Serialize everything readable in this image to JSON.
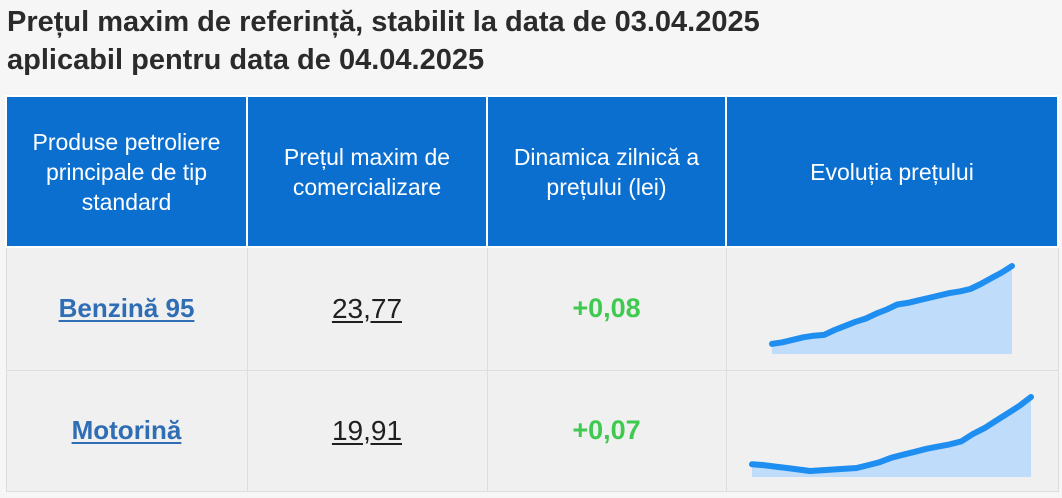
{
  "title": {
    "line1": "Prețul maxim de referință, stabilit la data de 03.04.2025",
    "line2": "aplicabil pentru data de 04.04.2025"
  },
  "table": {
    "headers": [
      "Produse petroliere principale de tip standard",
      "Prețul maxim de comercializare",
      "Dinamica zilnică a prețului (lei)",
      "Evoluția prețului"
    ],
    "rows": [
      {
        "product": "Benzină 95",
        "price": "23,77",
        "change": "+0,08",
        "trend": [
          0.05,
          0.07,
          0.1,
          0.13,
          0.15,
          0.16,
          0.22,
          0.27,
          0.32,
          0.36,
          0.42,
          0.47,
          0.53,
          0.55,
          0.58,
          0.61,
          0.64,
          0.67,
          0.69,
          0.72,
          0.78,
          0.85,
          0.92,
          1.0
        ]
      },
      {
        "product": "Motorină",
        "price": "19,91",
        "change": "+0,07",
        "trend": [
          0.09,
          0.08,
          0.06,
          0.04,
          0.02,
          0.0,
          0.01,
          0.02,
          0.03,
          0.04,
          0.08,
          0.12,
          0.18,
          0.22,
          0.26,
          0.3,
          0.33,
          0.36,
          0.4,
          0.5,
          0.58,
          0.68,
          0.78,
          0.88,
          1.0
        ]
      }
    ]
  },
  "colors": {
    "header_bg": "#0b6fd0",
    "positive": "#3ec94f",
    "trend_line": "#1f8ef1",
    "trend_fill": "#bfdcfb"
  }
}
